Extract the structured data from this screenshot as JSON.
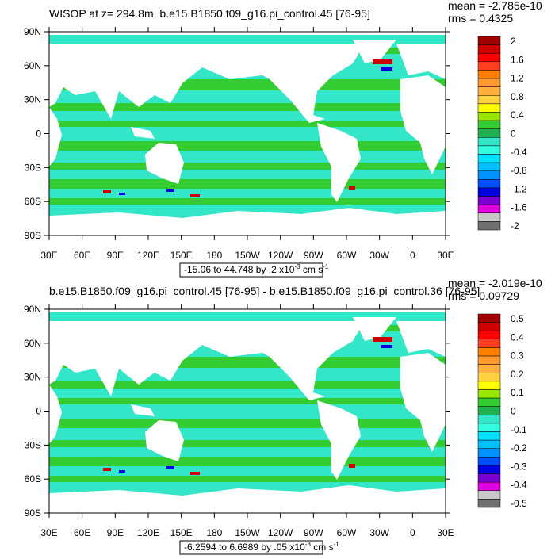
{
  "panels": [
    {
      "title": "WISOP at z= 294.8m, b.e15.B1850.f09_g16.pi_control.45 [76-95]",
      "mean": "mean = -2.785e-10",
      "rms": "rms = 0.4325",
      "contour_info": {
        "text": "-15.06 to 44.748 by .2 x10",
        "exp1": "-3",
        "unit": " cm s",
        "exp2": "-1"
      },
      "colorbar_labels": [
        "2",
        "1.6",
        "1.2",
        "0.8",
        "0.4",
        "0",
        "-0.4",
        "-0.8",
        "-1.2",
        "-1.6",
        "-2"
      ]
    },
    {
      "title": "b.e15.B1850.f09_g16.pi_control.45 [76-95] - b.e15.B1850.f09_g16.pi_control.36 [76-95]",
      "mean": "mean = -2.019e-10",
      "rms": "rms = 0.09729",
      "contour_info": {
        "text": "-6.2594 to 6.6989 by .05 x10",
        "exp1": "-3",
        "unit": " cm s",
        "exp2": "-1"
      },
      "colorbar_labels": [
        "0.5",
        "0.4",
        "0.3",
        "0.2",
        "0.1",
        "0",
        "-0.1",
        "-0.2",
        "-0.3",
        "-0.4",
        "-0.5"
      ]
    }
  ],
  "lat_labels": [
    "90N",
    "60N",
    "30N",
    "0",
    "30S",
    "60S",
    "90S"
  ],
  "lon_labels": [
    "30E",
    "60E",
    "90E",
    "120E",
    "150E",
    "180",
    "150W",
    "120W",
    "90W",
    "60W",
    "30W",
    "0",
    "30E"
  ]
}
